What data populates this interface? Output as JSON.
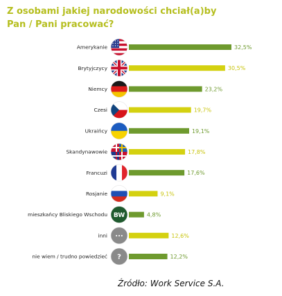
{
  "title_line1": "Z osobami jakiej narodowości chciał(a)by",
  "title_line2": "Pan / Pani pracować?",
  "source": "Źródło: Work Service S.A.",
  "colors": {
    "title": "#b5be1e",
    "bar_green": "#6e9a2e",
    "bar_yellow": "#d4d110",
    "label_green": "#6e9a2e",
    "label_yellow": "#c8c40c"
  },
  "chart_data": {
    "type": "bar",
    "orientation": "horizontal",
    "title": "Z osobami jakiej narodowości chciał(a)by Pan / Pani pracować?",
    "categories": [
      "Amerykanie",
      "Brytyjczycy",
      "Niemcy",
      "Czesi",
      "Ukraińcy",
      "Skandynawowie",
      "Francuzi",
      "Rosjanie",
      "mieszkańcy Bliskiego Wschodu",
      "inni",
      "nie wiem / trudno powiedzieć"
    ],
    "values": [
      32.5,
      30.5,
      23.2,
      19.7,
      19.1,
      17.8,
      17.6,
      9.1,
      4.8,
      12.6,
      12.2
    ],
    "value_labels": [
      "32,5%",
      "30,5%",
      "23,2%",
      "19,7%",
      "19,1%",
      "17,8%",
      "17,6%",
      "9,1%",
      "4,8%",
      "12,6%",
      "12,2%"
    ],
    "bar_colors": [
      "green",
      "yellow",
      "green",
      "yellow",
      "green",
      "yellow",
      "green",
      "yellow",
      "green",
      "yellow",
      "green"
    ],
    "icons": [
      "usa-flag-icon",
      "uk-flag-icon",
      "germany-flag-icon",
      "czech-flag-icon",
      "ukraine-flag-icon",
      "scandinavia-flags-icon",
      "france-flag-icon",
      "russia-flag-icon",
      "middle-east-bw-icon",
      "ellipsis-icon",
      "question-mark-icon"
    ],
    "icon_texts": [
      "",
      "",
      "",
      "",
      "",
      "",
      "",
      "",
      "BW",
      "...",
      "?"
    ],
    "xlim": [
      0,
      32.5
    ],
    "grid": false,
    "legend": "none"
  }
}
